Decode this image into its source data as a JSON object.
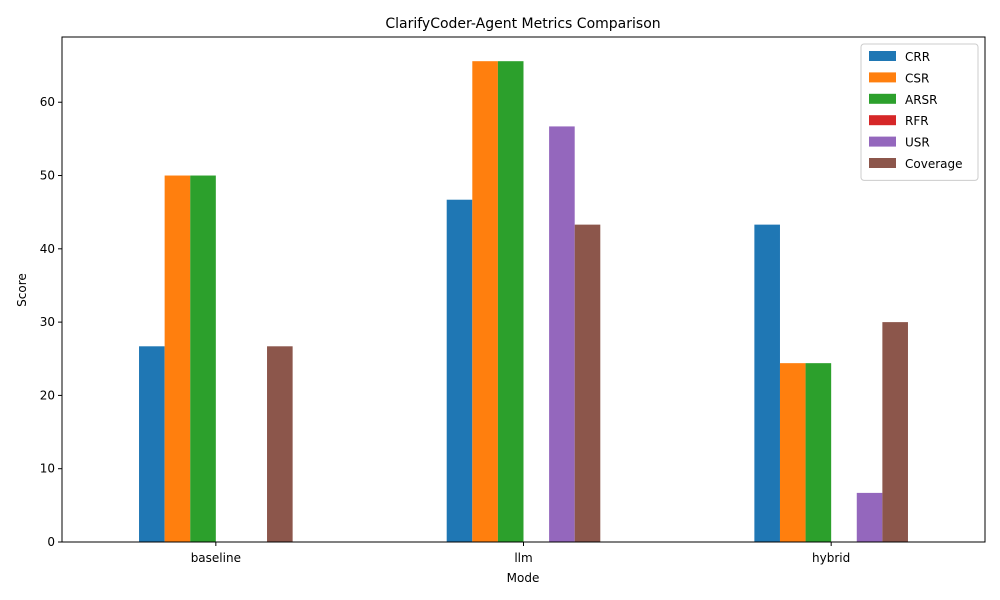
{
  "chart_data": {
    "type": "bar",
    "title": "ClarifyCoder-Agent Metrics Comparison",
    "xlabel": "Mode",
    "ylabel": "Score",
    "categories": [
      "baseline",
      "llm",
      "hybrid"
    ],
    "ylim": [
      0,
      68.9
    ],
    "yticks": [
      0,
      10,
      20,
      30,
      40,
      50,
      60
    ],
    "grid": false,
    "legend_position": "top-right",
    "series": [
      {
        "name": "CRR",
        "color": "#1f77b4",
        "values": [
          26.7,
          46.7,
          43.3
        ]
      },
      {
        "name": "CSR",
        "color": "#ff7f0e",
        "values": [
          50.0,
          65.6,
          24.4
        ]
      },
      {
        "name": "ARSR",
        "color": "#2ca02c",
        "values": [
          50.0,
          65.6,
          24.4
        ]
      },
      {
        "name": "RFR",
        "color": "#d62728",
        "values": [
          0,
          0,
          0
        ]
      },
      {
        "name": "USR",
        "color": "#9467bd",
        "values": [
          0,
          56.7,
          6.7
        ]
      },
      {
        "name": "Coverage",
        "color": "#8c564b",
        "values": [
          26.7,
          43.3,
          30.0
        ]
      }
    ]
  }
}
